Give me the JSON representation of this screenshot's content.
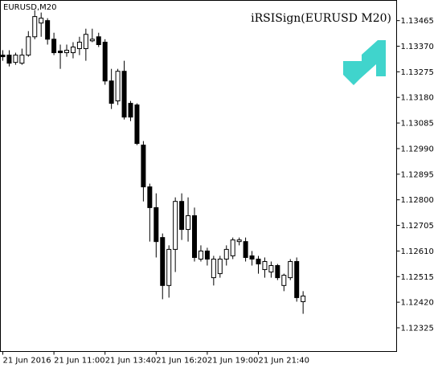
{
  "chart_data": {
    "type": "candlestick",
    "title": "EURUSD,M20",
    "indicator": "iRSISign(EURUSD M20)",
    "categories": [
      "21 Jun 2016",
      null,
      null,
      null,
      null,
      null,
      null,
      null,
      "21 Jun 11:00",
      null,
      null,
      null,
      null,
      null,
      null,
      null,
      "21 Jun 13:40",
      null,
      null,
      null,
      null,
      null,
      null,
      null,
      "21 Jun 16:20",
      null,
      null,
      null,
      null,
      null,
      null,
      null,
      "21 Jun 19:00",
      null,
      null,
      null,
      null,
      null,
      null,
      null,
      "21 Jun 21:40",
      null,
      null,
      null,
      null,
      null,
      null,
      null
    ],
    "open": [
      1.13337,
      1.13337,
      1.1331,
      1.13307,
      1.13337,
      1.13405,
      1.13456,
      1.13465,
      1.13396,
      1.13352,
      1.13346,
      1.13346,
      1.13361,
      1.13361,
      1.1339,
      1.13405,
      1.13385,
      1.13241,
      1.13167,
      1.13277,
      1.13158,
      1.13152,
      1.13003,
      1.12848,
      1.12771,
      1.1266,
      1.12482,
      1.12616,
      1.12794,
      1.1269,
      1.12741,
      1.1258,
      1.1261,
      1.12511,
      1.12526,
      1.1258,
      1.12592,
      1.12645,
      1.12645,
      1.12592,
      1.1258,
      1.12541,
      1.12532,
      1.12556,
      1.12482,
      1.12511,
      1.12571,
      1.12422
    ],
    "high": [
      1.13355,
      1.13355,
      1.13346,
      1.13361,
      1.13426,
      1.13504,
      1.13495,
      1.13474,
      1.1342,
      1.13376,
      1.13376,
      1.13385,
      1.13405,
      1.13435,
      1.13435,
      1.1342,
      1.13396,
      1.13286,
      1.13286,
      1.13316,
      1.13167,
      1.13158,
      1.13018,
      1.1286,
      1.12824,
      1.12675,
      1.12631,
      1.12809,
      1.12824,
      1.12809,
      1.12771,
      1.12631,
      1.12622,
      1.12592,
      1.12592,
      1.12631,
      1.1266,
      1.1266,
      1.1266,
      1.1261,
      1.12592,
      1.12586,
      1.12571,
      1.12562,
      1.12526,
      1.1258,
      1.12586,
      1.12461
    ],
    "low": [
      1.13316,
      1.13295,
      1.13301,
      1.13301,
      1.13331,
      1.13396,
      1.13405,
      1.13376,
      1.13337,
      1.13286,
      1.13331,
      1.13325,
      1.13337,
      1.13316,
      1.13385,
      1.13367,
      1.13227,
      1.13137,
      1.13152,
      1.13098,
      1.13092,
      1.13003,
      1.12794,
      1.12645,
      1.12586,
      1.12431,
      1.12437,
      1.12532,
      1.12651,
      1.12645,
      1.12571,
      1.12571,
      1.12556,
      1.12482,
      1.12511,
      1.12556,
      1.1258,
      1.12631,
      1.12571,
      1.12556,
      1.12526,
      1.12511,
      1.12511,
      1.12502,
      1.12461,
      1.12502,
      1.12422,
      1.12377
    ],
    "close": [
      1.13331,
      1.13307,
      1.13337,
      1.13337,
      1.13405,
      1.1348,
      1.13474,
      1.13396,
      1.13346,
      1.13346,
      1.13355,
      1.13367,
      1.13385,
      1.13414,
      1.13396,
      1.13376,
      1.13241,
      1.13158,
      1.13277,
      1.13107,
      1.13107,
      1.13009,
      1.12848,
      1.12771,
      1.12645,
      1.12482,
      1.12616,
      1.12794,
      1.1269,
      1.12741,
      1.12586,
      1.1261,
      1.1258,
      1.1258,
      1.1258,
      1.12616,
      1.12651,
      1.12651,
      1.12586,
      1.1258,
      1.12562,
      1.12571,
      1.12556,
      1.12511,
      1.1252,
      1.12571,
      1.12437,
      1.12443
    ],
    "ylim": [
      1.12237,
      1.1354
    ],
    "yticks": [
      1.13465,
      {
        "value": 1.1337,
        "label": "1.13370"
      },
      1.13275,
      {
        "value": 1.1318,
        "label": "1.13180"
      },
      1.13085,
      {
        "value": 1.1299,
        "label": "1.12990"
      },
      1.12895,
      {
        "value": 1.128,
        "label": "1.12800"
      },
      1.12705,
      {
        "value": 1.1261,
        "label": "1.12610"
      },
      1.12515,
      {
        "value": 1.1242,
        "label": "1.12420"
      },
      1.12325
    ],
    "up_color": "#ffffff",
    "down_color": "#000000",
    "indicator_color": "#b44fc8"
  }
}
